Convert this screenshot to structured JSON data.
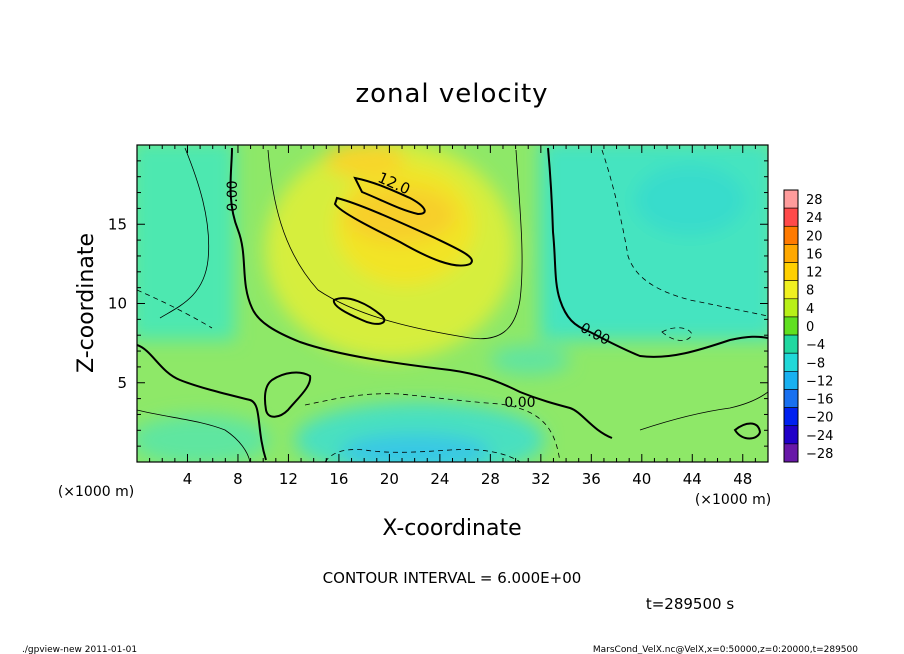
{
  "chart_data": {
    "type": "heatmap",
    "title": "zonal velocity",
    "xlabel": "X-coordinate",
    "ylabel": "Z-coordinate",
    "x_unit": "(×1000 m)",
    "y_unit": "(×1000 m)",
    "xlim": [
      0,
      50
    ],
    "ylim": [
      0,
      20
    ],
    "x_ticks": [
      "4",
      "8",
      "12",
      "16",
      "20",
      "24",
      "28",
      "32",
      "36",
      "40",
      "44",
      "48"
    ],
    "y_ticks": [
      "5",
      "10",
      "15"
    ],
    "colorbar": {
      "levels": [
        "28",
        "24",
        "20",
        "16",
        "12",
        "8",
        "4",
        "0",
        "−4",
        "−8",
        "−12",
        "−16",
        "−20",
        "−24",
        "−28"
      ],
      "colors": [
        "#ff9c9c",
        "#ff4a4a",
        "#ff7a00",
        "#ffa800",
        "#ffd000",
        "#f0f020",
        "#b8f018",
        "#60e020",
        "#20d8a0",
        "#20d8d8",
        "#18b0f0",
        "#1870f0",
        "#0020f0",
        "#2000c8",
        "#6818a8"
      ]
    },
    "contour_labels": [
      "0.00",
      "12.0",
      "0.00",
      "0.00"
    ],
    "contour_interval_text": "CONTOUR INTERVAL = 6.000E+00",
    "time_text": "t=289500 s"
  },
  "footer": {
    "left": "./gpview-new   2011-01-01",
    "right": "MarsCond_VelX.nc@VelX,x=0:50000,z=0:20000,t=289500"
  }
}
